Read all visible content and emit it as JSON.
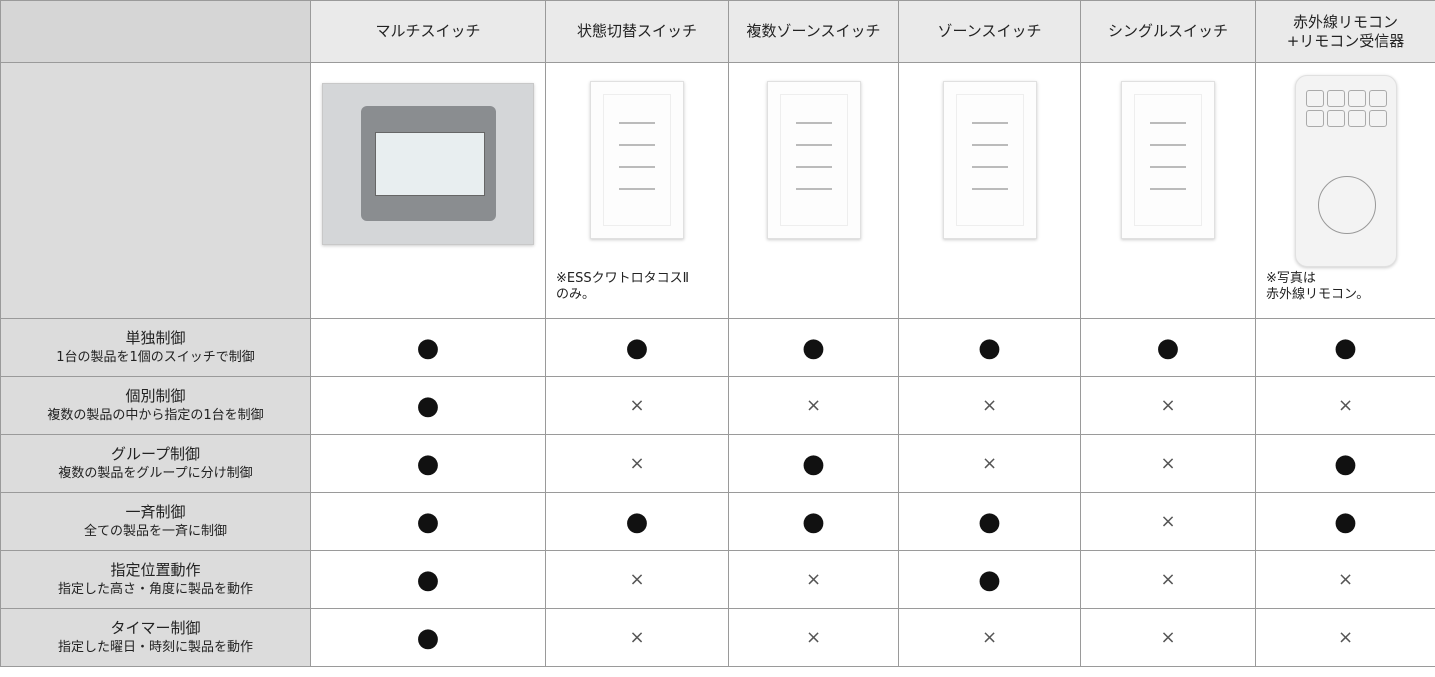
{
  "table": {
    "columns": [
      "マルチスイッチ",
      "状態切替スイッチ",
      "複数ゾーンスイッチ",
      "ゾーンスイッチ",
      "シングルスイッチ",
      "赤外線リモコン\n+リモコン受信器"
    ],
    "notes": [
      null,
      "※ESSクワトロタコスⅡ\nのみ。",
      null,
      null,
      null,
      "※写真は\n赤外線リモコン。"
    ],
    "rows": [
      {
        "title": "単独制御",
        "subtitle": "1台の製品を1個のスイッチで制御",
        "cells": [
          "●",
          "●",
          "●",
          "●",
          "●",
          "●"
        ]
      },
      {
        "title": "個別制御",
        "subtitle": "複数の製品の中から指定の1台を制御",
        "cells": [
          "●",
          "×",
          "×",
          "×",
          "×",
          "×"
        ]
      },
      {
        "title": "グループ制御",
        "subtitle": "複数の製品をグループに分け制御",
        "cells": [
          "●",
          "×",
          "●",
          "×",
          "×",
          "●"
        ]
      },
      {
        "title": "一斉制御",
        "subtitle": "全ての製品を一斉に制御",
        "cells": [
          "●",
          "●",
          "●",
          "●",
          "×",
          "●"
        ]
      },
      {
        "title": "指定位置動作",
        "subtitle": "指定した高さ・角度に製品を動作",
        "cells": [
          "●",
          "×",
          "×",
          "●",
          "×",
          "×"
        ]
      },
      {
        "title": "タイマー制御",
        "subtitle": "指定した曜日・時刻に製品を動作",
        "cells": [
          "●",
          "×",
          "×",
          "×",
          "×",
          "×"
        ]
      }
    ]
  }
}
